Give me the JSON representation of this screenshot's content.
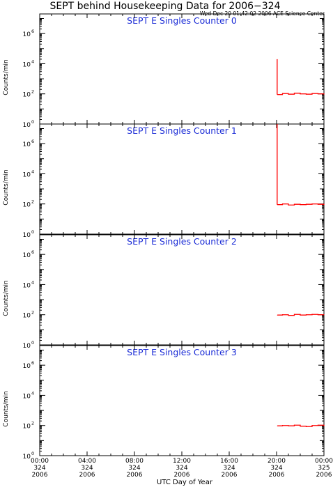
{
  "title": "SEPT behind Housekeeping Data for 2006−324",
  "timestamp": "Wed Dec 20 01:42:02 2006 ACE Science Center",
  "xlabel": "UTC Day of Year",
  "colors": {
    "panel_title": "#1a2bd6",
    "line": "#ff0000",
    "axis": "#000000"
  },
  "x_ticks": [
    {
      "time": "00:00",
      "day": "324",
      "year": "2006"
    },
    {
      "time": "04:00",
      "day": "324",
      "year": "2006"
    },
    {
      "time": "08:00",
      "day": "324",
      "year": "2006"
    },
    {
      "time": "12:00",
      "day": "324",
      "year": "2006"
    },
    {
      "time": "16:00",
      "day": "324",
      "year": "2006"
    },
    {
      "time": "20:00",
      "day": "324",
      "year": "2006"
    },
    {
      "time": "00:00",
      "day": "325",
      "year": "2006"
    }
  ],
  "chart_data": [
    {
      "type": "line",
      "title": "SEPT E Singles Counter 0",
      "ylabel": "Counts/min",
      "yscale": "log",
      "ylim": [
        1,
        20000000
      ],
      "yticks": [
        "10^0",
        "10^2",
        "10^4",
        "10^6"
      ],
      "xlim": [
        0,
        24
      ],
      "x_unit": "hours after 324 00:00 UTC",
      "spike": {
        "x": 20.05,
        "y": 20000
      },
      "x": [
        20.08,
        20.5,
        21.0,
        21.5,
        22.0,
        22.5,
        23.0,
        23.5,
        24.0
      ],
      "values": [
        90,
        105,
        95,
        110,
        100,
        95,
        105,
        100,
        95
      ]
    },
    {
      "type": "line",
      "title": "SEPT E Singles Counter 1",
      "ylabel": "Counts/min",
      "yscale": "log",
      "ylim": [
        1,
        20000000
      ],
      "yticks": [
        "10^0",
        "10^2",
        "10^4",
        "10^6"
      ],
      "xlim": [
        0,
        24
      ],
      "x_unit": "hours after 324 00:00 UTC",
      "spike": {
        "x": 20.05,
        "y": 20000000
      },
      "x": [
        20.08,
        20.5,
        21.0,
        21.5,
        22.0,
        22.5,
        23.0,
        23.5,
        24.0
      ],
      "values": [
        90,
        100,
        85,
        95,
        90,
        95,
        100,
        95,
        90
      ]
    },
    {
      "type": "line",
      "title": "SEPT E Singles Counter 2",
      "ylabel": "Counts/min",
      "yscale": "log",
      "ylim": [
        1,
        20000000
      ],
      "yticks": [
        "10^0",
        "10^2",
        "10^4",
        "10^6"
      ],
      "xlim": [
        0,
        24
      ],
      "x_unit": "hours after 324 00:00 UTC",
      "x": [
        20.08,
        20.5,
        21.0,
        21.5,
        22.0,
        22.5,
        23.0,
        23.5,
        24.0
      ],
      "values": [
        95,
        100,
        90,
        105,
        95,
        100,
        105,
        100,
        100
      ]
    },
    {
      "type": "line",
      "title": "SEPT E Singles Counter 3",
      "ylabel": "Counts/min",
      "yscale": "log",
      "ylim": [
        1,
        20000000
      ],
      "yticks": [
        "10^0",
        "10^2",
        "10^4",
        "10^6"
      ],
      "xlim": [
        0,
        24
      ],
      "x_unit": "hours after 324 00:00 UTC",
      "x": [
        20.08,
        20.5,
        21.0,
        21.5,
        22.0,
        22.5,
        23.0,
        23.5,
        24.0
      ],
      "values": [
        95,
        100,
        95,
        105,
        90,
        85,
        100,
        105,
        95
      ]
    }
  ]
}
